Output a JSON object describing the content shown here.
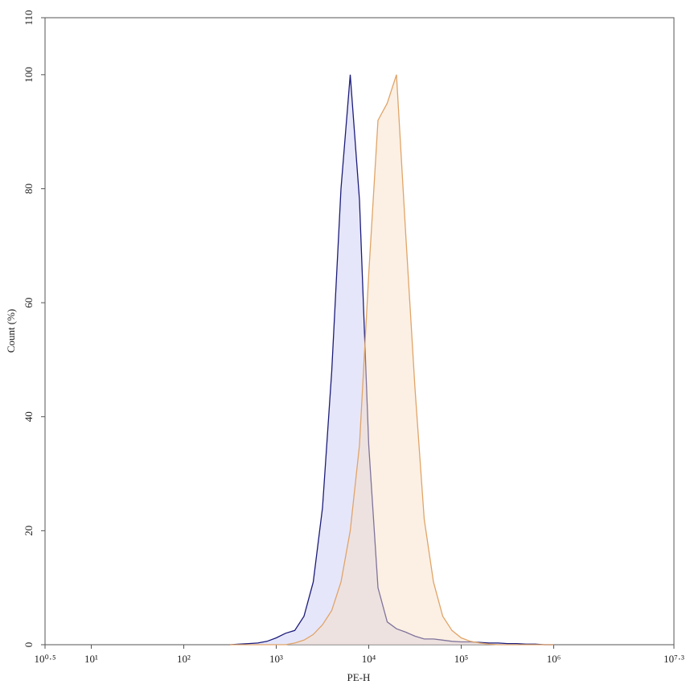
{
  "chart_data": {
    "type": "area",
    "x_label": "PE-H",
    "y_label": "Count (%)",
    "xscale": "log",
    "x": [
      316,
      398,
      501,
      631,
      794,
      1000,
      1259,
      1585,
      1995,
      2512,
      3162,
      3981,
      5012,
      6310,
      7943,
      10000,
      12589,
      15849,
      19953,
      25119,
      31623,
      39811,
      50119,
      63096,
      79433,
      100000,
      125893,
      158489,
      199526,
      251189,
      316228,
      398107,
      501187,
      630957,
      794328,
      1000000
    ],
    "series": [
      {
        "color": "#1c1c7a",
        "fill": "#c8c8f5",
        "values": [
          0,
          0.1,
          0.2,
          0.3,
          0.6,
          1.2,
          2,
          2.5,
          5,
          11,
          24,
          48,
          80,
          100,
          78,
          35,
          10,
          4,
          2.8,
          2.2,
          1.5,
          1.0,
          1.0,
          0.8,
          0.6,
          0.5,
          0.5,
          0.4,
          0.3,
          0.3,
          0.2,
          0.2,
          0.1,
          0.1,
          0,
          0
        ]
      },
      {
        "color": "#e0a468",
        "fill": "#f8ddc4",
        "values": [
          0,
          0,
          0,
          0,
          0,
          0,
          0,
          0.3,
          0.8,
          1.8,
          3.5,
          6,
          11,
          20,
          35,
          65,
          92,
          95,
          100,
          72,
          45,
          22,
          11,
          5,
          2.5,
          1.2,
          0.6,
          0.3,
          0.1,
          0,
          0,
          0,
          0,
          0,
          0,
          0
        ]
      }
    ],
    "xlim": [
      3.1623,
      19952623
    ],
    "xticks": [
      {
        "value": 3.1623,
        "label": "10⁰·⁵"
      },
      {
        "value": 10,
        "label": "10¹"
      },
      {
        "value": 100,
        "label": "10²"
      },
      {
        "value": 1000,
        "label": "10³"
      },
      {
        "value": 10000,
        "label": "10⁴"
      },
      {
        "value": 100000,
        "label": "10⁵"
      },
      {
        "value": 1000000,
        "label": "10⁶"
      },
      {
        "value": 19952623,
        "label": "10⁷·³"
      }
    ],
    "ylim": [
      0,
      110
    ],
    "yticks": [
      0,
      20,
      40,
      60,
      80,
      100,
      110
    ]
  }
}
